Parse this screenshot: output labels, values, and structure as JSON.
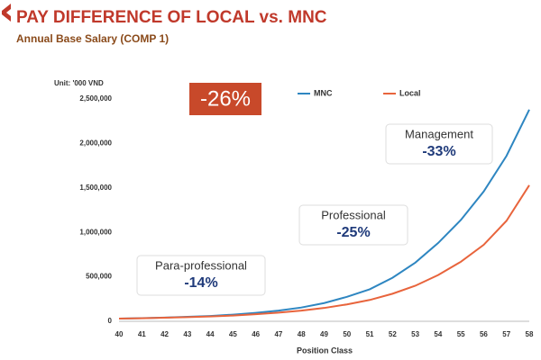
{
  "chart_data": {
    "type": "line",
    "title": "PAY DIFFERENCE OF LOCAL vs. MNC",
    "subtitle": "Annual Base Salary (COMP 1)",
    "y_unit": "Unit: '000 VND",
    "x_label": "Position Class",
    "highlight": "-26%",
    "annotations": [
      {
        "text": "Para-professional",
        "change": "-14%"
      },
      {
        "text": "Professional",
        "change": "-25%"
      },
      {
        "text": "Management",
        "change": "-33%"
      }
    ],
    "x": [
      40,
      41,
      42,
      43,
      44,
      45,
      46,
      47,
      48,
      49,
      50,
      51,
      52,
      53,
      54,
      55,
      56,
      57,
      58
    ],
    "xlim": [
      40,
      58
    ],
    "xticks": [
      40,
      41,
      42,
      43,
      44,
      45,
      46,
      47,
      48,
      49,
      50,
      51,
      52,
      53,
      54,
      55,
      56,
      57,
      58
    ],
    "ylim": [
      0,
      2500000
    ],
    "yticks": [
      0,
      {
        "value": 500000,
        "label": "500,000"
      },
      {
        "value": 1000000,
        "label": "1,000,000"
      },
      {
        "value": 1500000,
        "label": "1,500,000"
      },
      {
        "value": 2000000,
        "label": "2,000,000"
      },
      {
        "value": 2500000,
        "label": "2,500,000"
      }
    ],
    "grid": false,
    "legend": "top",
    "series": [
      {
        "name": "MNC",
        "color": "#2e86c1",
        "values": [
          30000,
          35000,
          42000,
          50000,
          60000,
          75000,
          95000,
          120000,
          155000,
          205000,
          275000,
          360000,
          490000,
          660000,
          880000,
          1140000,
          1460000,
          1860000,
          2380000
        ]
      },
      {
        "name": "Local",
        "color": "#e8643c",
        "values": [
          30000,
          34000,
          40000,
          47000,
          55000,
          65000,
          80000,
          98000,
          120000,
          150000,
          190000,
          240000,
          310000,
          400000,
          520000,
          670000,
          860000,
          1130000,
          1530000
        ]
      }
    ]
  }
}
